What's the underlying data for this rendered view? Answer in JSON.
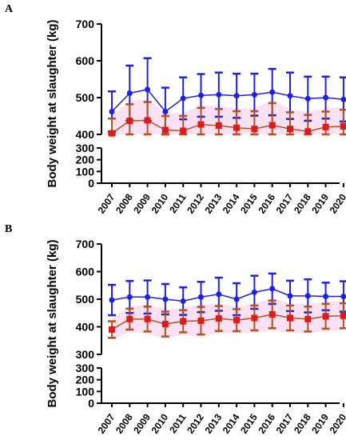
{
  "chart_data": [
    {
      "panel": "A",
      "type": "line",
      "ylabel": "Body weight at slaughter (kg)",
      "xlabel": "",
      "categories": [
        "2007",
        "2008",
        "2009",
        "2010",
        "2011",
        "2012",
        "2013",
        "2014",
        "2015",
        "2016",
        "2017",
        "2018",
        "2019",
        "2020"
      ],
      "yticks_upper": [
        400,
        500,
        600,
        700
      ],
      "yticks_lower": [
        0,
        100,
        200,
        300
      ],
      "y_break": [
        200,
        300
      ],
      "ylim": [
        0,
        700
      ],
      "series": [
        {
          "color": "#1f1fe6",
          "values": [
            462,
            512,
            522,
            462,
            498,
            506,
            508,
            505,
            508,
            515,
            505,
            497,
            500,
            495
          ],
          "errors": [
            55,
            75,
            85,
            65,
            57,
            58,
            60,
            60,
            57,
            63,
            63,
            60,
            57,
            60
          ]
        },
        {
          "color": "#e01a1a",
          "values": [
            403,
            437,
            438,
            412,
            410,
            427,
            424,
            418,
            415,
            425,
            415,
            408,
            420,
            422
          ],
          "errors": [
            40,
            45,
            50,
            38,
            40,
            45,
            45,
            45,
            48,
            60,
            45,
            45,
            42,
            45
          ]
        }
      ]
    },
    {
      "panel": "B",
      "type": "line",
      "ylabel": "Body weight at slaughter (kg)",
      "xlabel": "",
      "categories": [
        "2007",
        "2008",
        "2009",
        "2010",
        "2011",
        "2012",
        "2013",
        "2014",
        "2015",
        "2016",
        "2017",
        "2018",
        "2019",
        "2020"
      ],
      "yticks_upper": [
        300,
        400,
        500,
        600,
        700
      ],
      "yticks_lower": [
        0,
        100,
        200,
        300
      ],
      "y_break": [
        200,
        300
      ],
      "ylim": [
        0,
        700
      ],
      "series": [
        {
          "color": "#1f1fe6",
          "values": [
            497,
            508,
            508,
            500,
            493,
            508,
            518,
            500,
            525,
            538,
            512,
            512,
            510,
            510
          ],
          "errors": [
            55,
            58,
            60,
            55,
            50,
            55,
            60,
            58,
            60,
            55,
            55,
            60,
            50,
            55
          ]
        },
        {
          "color": "#e01a1a",
          "values": [
            390,
            428,
            428,
            410,
            420,
            422,
            430,
            424,
            432,
            445,
            432,
            428,
            438,
            440
          ],
          "errors": [
            30,
            38,
            45,
            45,
            40,
            50,
            45,
            40,
            45,
            50,
            45,
            45,
            45,
            45
          ]
        }
      ]
    }
  ],
  "panels": [
    {
      "letter": "A"
    },
    {
      "letter": "B"
    }
  ]
}
